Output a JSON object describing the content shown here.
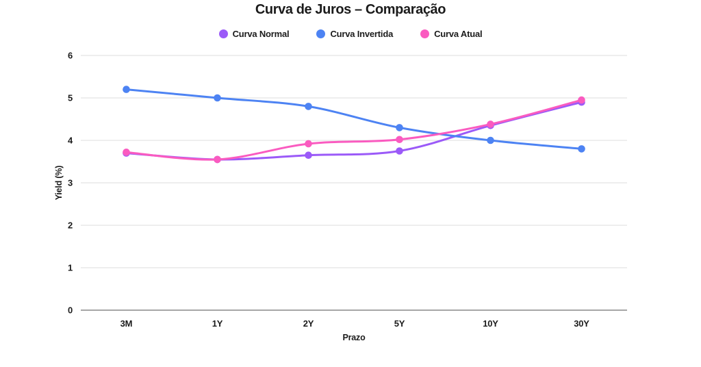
{
  "chart_data": {
    "type": "line",
    "title": "Curva de Juros – Comparação",
    "xlabel": "Prazo",
    "ylabel": "Yield (%)",
    "categories": [
      "3M",
      "1Y",
      "2Y",
      "5Y",
      "10Y",
      "30Y"
    ],
    "series": [
      {
        "name": "Curva Normal",
        "color": "#9B5AF8",
        "values": [
          3.7,
          3.55,
          3.65,
          3.75,
          4.35,
          4.9
        ]
      },
      {
        "name": "Curva Invertida",
        "color": "#4D83F3",
        "values": [
          5.2,
          5.0,
          4.8,
          4.3,
          4.0,
          3.8
        ]
      },
      {
        "name": "Curva Atual",
        "color": "#FA5BC0",
        "values": [
          3.72,
          3.55,
          3.92,
          4.02,
          4.38,
          4.95
        ]
      }
    ],
    "ylim": [
      0,
      6
    ],
    "yticks": [
      0,
      1,
      2,
      3,
      4,
      5,
      6
    ],
    "grid": true,
    "legend_position": "top",
    "colors": {
      "grid_line": "#E4E4E4",
      "zero_axis_line": "#A6A6A6",
      "text": "#1B1B1B",
      "background": "#FFFFFF"
    }
  }
}
